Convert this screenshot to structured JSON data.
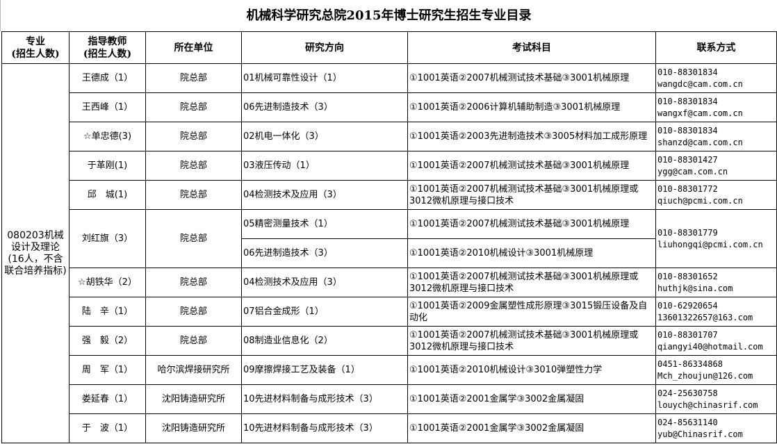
{
  "title": "机械科学研究总院2015年博士研究生招生专业目录",
  "headers": {
    "major": [
      "专业",
      "(招生人数)"
    ],
    "advisor": [
      "指导教师",
      "(招生人数)"
    ],
    "unit": "所在单位",
    "direction": "研究方向",
    "exam": "考试科目",
    "contact": "联系方式"
  },
  "major": "080203机械设计及理论(16人，不含联合培养指标)",
  "rows": [
    {
      "advisor": "王德成（1）",
      "unit": "院总部",
      "direction": "01机械可靠性设计（1）",
      "exam": "①1001英语②2007机械测试技术基础③3001机械原理",
      "phone": "010-88301834",
      "email": "wangdc@cam.com.cn"
    },
    {
      "advisor": "王西峰（1）",
      "unit": "院总部",
      "direction": "06先进制造技术（3）",
      "exam": "①1001英语②2006计算机辅助制造③3001机械原理",
      "phone": "010-88301834",
      "email": "wangxf@cam.com.cn"
    },
    {
      "advisor": "☆单忠德(3)",
      "unit": "院总部",
      "direction": "02机电一体化（3）",
      "exam": "①1001英语②2003先进制造技术③3005材料加工成形原理",
      "phone": "010-88301834",
      "email": "shanzd@cam.com.cn"
    },
    {
      "advisor": "于革刚(1)",
      "unit": "院总部",
      "direction": "03液压传动（1）",
      "exam": "①1001英语②2007机械测试技术基础③3001机械原理",
      "phone": "010-88301427",
      "email": "ygg@cam.com.cn"
    },
    {
      "advisor": "邱　城(1)",
      "unit": "院总部",
      "direction": "04检测技术及应用（3）",
      "exam": "①1001英语②2007机械测试技术基础③3001机械原理或3012微机原理与接口技术",
      "phone": "010-88301772",
      "email": "qiuch@pcmi.com.cn"
    },
    {
      "advisor": "刘红旗（3）",
      "unit": "院总部",
      "direction": "05精密测量技术（1）",
      "exam": "①1001英语②2007机械测试技术基础③3001机械原理",
      "direction2": "06先进制造技术（3）",
      "exam2": "①1001英语②2010机械设计③3001机械原理",
      "phone": "010-88301779",
      "email": "liuhongqi@pcmi.com.cn"
    },
    {
      "advisor": "☆胡铁华（2）",
      "unit": "院总部",
      "direction": "04检测技术及应用（3）",
      "exam": "①1001英语②2007机械测试技术基础③3001机械原理或3012微机原理与接口技术",
      "phone": "010-88301652",
      "email": "huthjk@sina.com"
    },
    {
      "advisor": "陆　辛（1）",
      "unit": "院总部",
      "direction": "07铝合金成形（1）",
      "exam": "①1001英语②2009金属塑性成形原理③3015锻压设备及自动化",
      "phone": "010-62920654",
      "email": "13601322657@163.com"
    },
    {
      "advisor": "强　毅（2）",
      "unit": "院总部",
      "direction": "08制造业信息化（2）",
      "exam": "①1001英语②2007机械测试技术基础③3001机械原理或3012微机原理与接口技术",
      "phone": "010-88301707",
      "email": "qiangyi40@hotmail.com"
    },
    {
      "advisor": "周　军（1）",
      "unit": "哈尔滨焊接研究所",
      "direction": "09摩擦焊接工艺及装备（1）",
      "exam": "①1001英语②2010机械设计③3010弹塑性力学",
      "phone": "0451-86334868",
      "email": "Mch_zhoujun@126.com"
    },
    {
      "advisor": "娄延春（1）",
      "unit": "沈阳铸造研究所",
      "direction": "10先进材料制备与成形技术（3）",
      "exam": "①1001英语②2001金属学③3002金属凝固",
      "phone": "024-25630758",
      "email": "louych@chinasrif.com"
    },
    {
      "advisor": "于　波（1）",
      "unit": "沈阳铸造研究所",
      "direction": "10先进材料制备与成形技术（3）",
      "exam": "①1001英语②2001金属学③3002金属凝固",
      "phone": "024-85631140",
      "email": "yub@Chinasrif.com"
    }
  ]
}
